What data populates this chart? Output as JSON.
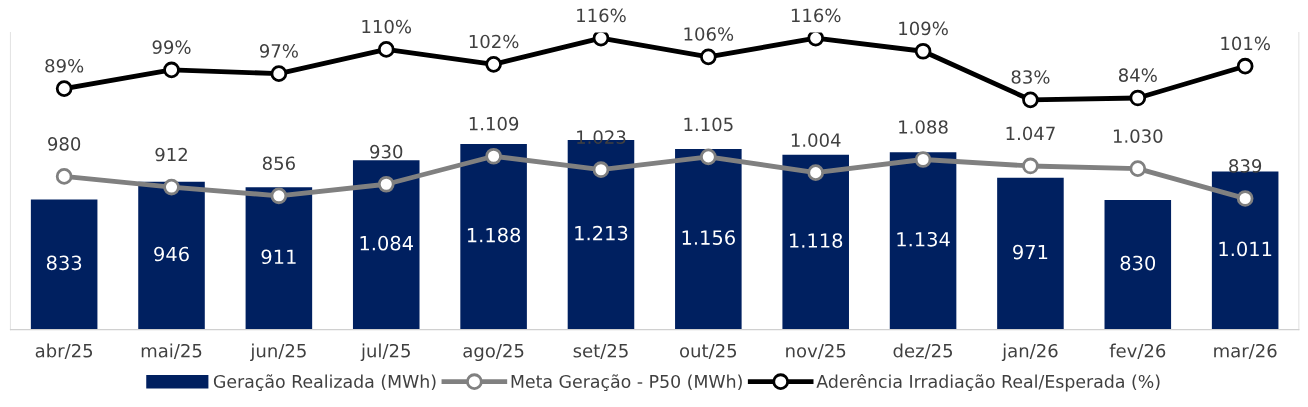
{
  "chart_data": {
    "type": "bar",
    "categories": [
      "abr/25",
      "mai/25",
      "jun/25",
      "jul/25",
      "ago/25",
      "set/25",
      "out/25",
      "nov/25",
      "dez/25",
      "jan/26",
      "fev/26",
      "mar/26"
    ],
    "series": [
      {
        "name": "Geração Realizada (MWh)",
        "color": "#002060",
        "values": [
          833,
          946,
          911,
          1084,
          1188,
          1213,
          1156,
          1118,
          1134,
          971,
          830,
          1011
        ],
        "value_labels": [
          "833",
          "946",
          "911",
          "1.084",
          "1.188",
          "1.213",
          "1.156",
          "1.118",
          "1.134",
          "971",
          "830",
          "1.011"
        ]
      },
      {
        "name": "Meta Geração - P50 (MWh)",
        "type": "line",
        "color": "#808080",
        "marker": "circle",
        "values": [
          980,
          912,
          856,
          930,
          1109,
          1023,
          1105,
          1004,
          1088,
          1047,
          1030,
          839
        ],
        "value_labels": [
          "980",
          "912",
          "856",
          "930",
          "1.109",
          "1.023",
          "1.105",
          "1.004",
          "1.088",
          "1.047",
          "1.030",
          "839"
        ]
      },
      {
        "name": "Aderência Irradiação Real/Esperada (%)",
        "type": "line",
        "axis": "y2",
        "color": "#000000",
        "marker": "circle",
        "values": [
          89,
          99,
          97,
          110,
          102,
          116,
          106,
          116,
          109,
          83,
          84,
          101
        ],
        "value_labels": [
          "89%",
          "99%",
          "97%",
          "110%",
          "102%",
          "116%",
          "106%",
          "116%",
          "109%",
          "83%",
          "84%",
          "101%"
        ]
      }
    ],
    "ylim": [
      0,
      1900
    ],
    "y2lim": [
      -40,
      119
    ],
    "tick_labels": "x",
    "grid": false,
    "legend": "bottom"
  }
}
